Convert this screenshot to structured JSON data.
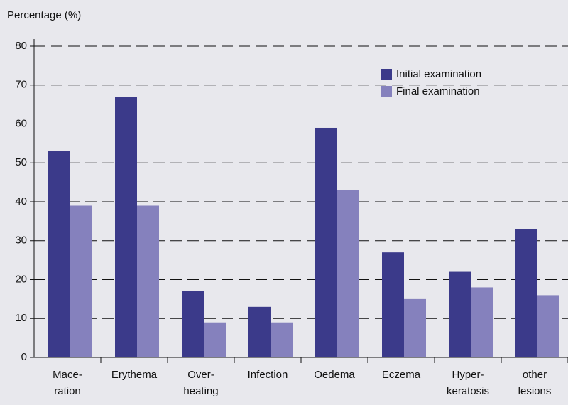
{
  "chart_data": {
    "type": "bar",
    "y_label": "Percentage (%)",
    "categories": [
      [
        "Mace-",
        "ration"
      ],
      [
        "Erythema"
      ],
      [
        "Over-",
        "heating"
      ],
      [
        "Infection"
      ],
      [
        "Oedema"
      ],
      [
        "Eczema"
      ],
      [
        "Hyper-",
        "keratosis"
      ],
      [
        "other",
        "lesions"
      ]
    ],
    "series": [
      {
        "name": "Initial examination",
        "color": "#3b3a8a",
        "values": [
          53,
          67,
          17,
          13,
          59,
          27,
          22,
          33
        ]
      },
      {
        "name": "Final examination",
        "color": "#8581bd",
        "values": [
          39,
          39,
          9,
          9,
          43,
          15,
          18,
          16
        ]
      }
    ],
    "ylim": [
      0,
      80
    ],
    "yticks": [
      0,
      10,
      20,
      30,
      40,
      50,
      60,
      70,
      80
    ],
    "grid": true,
    "legend": "upper right"
  }
}
